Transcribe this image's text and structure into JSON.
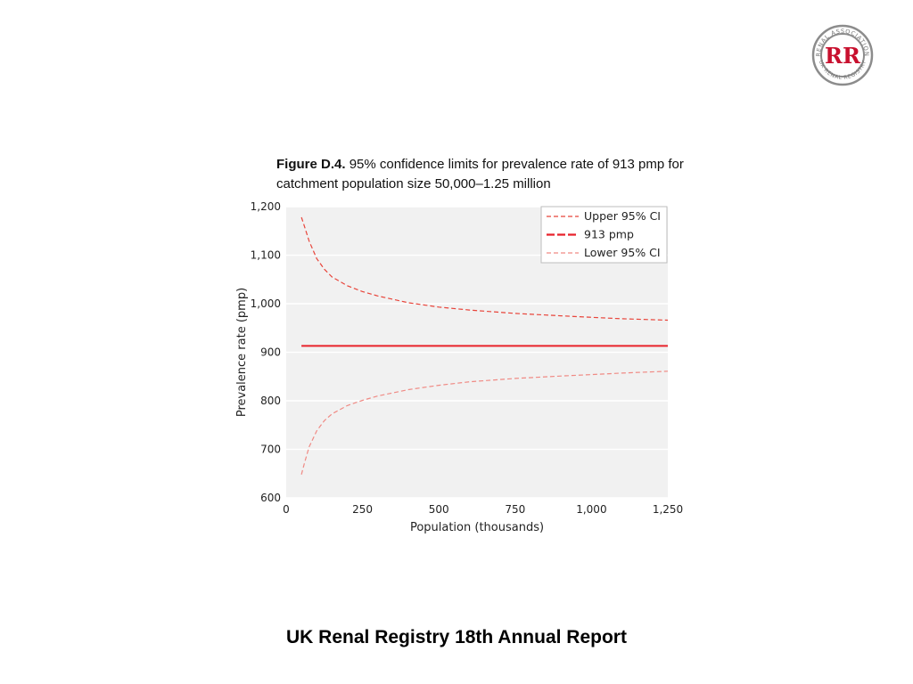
{
  "logo": {
    "initials": "RR",
    "ring_top": "RENAL ASSOCIATION",
    "ring_bottom": "UK RENAL REGISTRY",
    "colors": {
      "ring": "#8c8c8c",
      "letters": "#c8102e"
    }
  },
  "caption": {
    "label": "Figure D.4.",
    "text": "95% confidence limits for prevalence rate of 913 pmp for catchment population size 50,000–1.25 million"
  },
  "footer": {
    "title": "UK Renal Registry 18th Annual Report"
  },
  "chart_data": {
    "type": "line",
    "xlabel": "Population (thousands)",
    "ylabel": "Prevalence rate (pmp)",
    "xlim": [
      0,
      1250
    ],
    "ylim": [
      600,
      1200
    ],
    "xticks": [
      0,
      250,
      500,
      750,
      1000,
      1250
    ],
    "xtick_labels": [
      "0",
      "250",
      "500",
      "750",
      "1,000",
      "1,250"
    ],
    "yticks": [
      600,
      700,
      800,
      900,
      1000,
      1100,
      1200
    ],
    "ytick_labels": [
      "600",
      "700",
      "800",
      "900",
      "1,000",
      "1,100",
      "1,200"
    ],
    "grid": "horizontal",
    "legend_position": "top-right",
    "series": [
      {
        "name": "Upper 95% CI",
        "color": "#e8443a",
        "dash": "dashed",
        "x": [
          50,
          60,
          75,
          100,
          125,
          150,
          200,
          250,
          300,
          400,
          500,
          600,
          750,
          900,
          1000,
          1100,
          1250
        ],
        "y": [
          1178,
          1159,
          1129,
          1093,
          1071,
          1055,
          1037,
          1025,
          1016,
          1002,
          993,
          987,
          980,
          975,
          972,
          969,
          966
        ]
      },
      {
        "name": "913 pmp",
        "color": "#e8222b",
        "dash": "solid",
        "x": [
          50,
          1250
        ],
        "y": [
          913,
          913
        ]
      },
      {
        "name": "Lower 95% CI",
        "color": "#f08a84",
        "dash": "dashed",
        "x": [
          50,
          60,
          75,
          100,
          125,
          150,
          200,
          250,
          300,
          400,
          500,
          600,
          750,
          900,
          1000,
          1100,
          1250
        ],
        "y": [
          648,
          672,
          705,
          738,
          759,
          773,
          790,
          801,
          810,
          823,
          832,
          839,
          846,
          851,
          854,
          857,
          861
        ]
      }
    ]
  }
}
